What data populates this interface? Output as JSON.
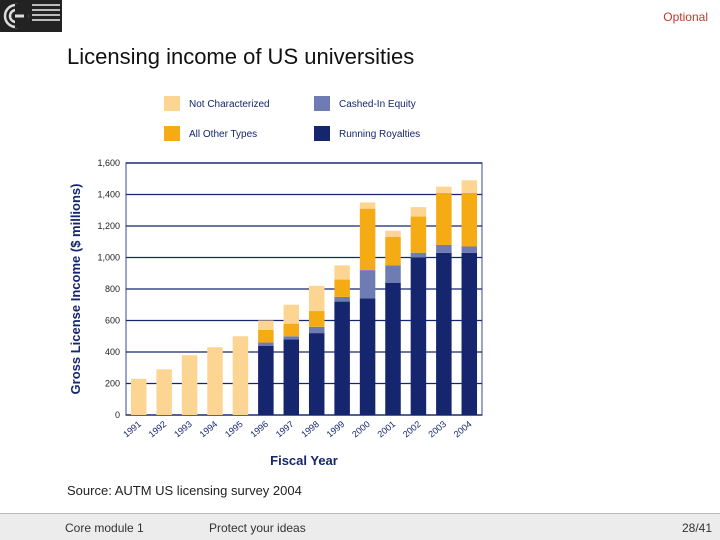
{
  "header": {
    "tag": "Optional"
  },
  "slide": {
    "title": "Licensing income of US universities",
    "source": "Source: AUTM US licensing survey 2004"
  },
  "footer": {
    "module": "Core module 1",
    "section": "Protect your ideas",
    "page": "28/41"
  },
  "chart_data": {
    "type": "bar",
    "stacked": true,
    "xlabel": "Fiscal Year",
    "ylabel": "Gross License Income ($ millions)",
    "ylim": [
      0,
      1600
    ],
    "yticks": [
      0,
      200,
      400,
      600,
      800,
      1000,
      1200,
      1400,
      1600
    ],
    "yticklabels": [
      "0",
      "200",
      "400",
      "600",
      "800",
      "1,000",
      "1,200",
      "1,400",
      "1,600"
    ],
    "grid": true,
    "legend_position": "top",
    "categories": [
      "1991",
      "1992",
      "1993",
      "1994",
      "1995",
      "1996",
      "1997",
      "1998",
      "1999",
      "2000",
      "2001",
      "2002",
      "2003",
      "2004"
    ],
    "series": [
      {
        "name": "Running Royalties",
        "color": "#15266e",
        "values": [
          0,
          0,
          0,
          0,
          0,
          440,
          480,
          520,
          720,
          740,
          840,
          1000,
          1030,
          1030
        ]
      },
      {
        "name": "Cashed-In Equity",
        "color": "#6f7bb3",
        "values": [
          0,
          0,
          0,
          0,
          0,
          20,
          20,
          40,
          30,
          180,
          110,
          30,
          50,
          40
        ]
      },
      {
        "name": "All Other Types",
        "color": "#f4ab14",
        "values": [
          0,
          0,
          0,
          0,
          0,
          80,
          80,
          100,
          110,
          390,
          180,
          230,
          330,
          340
        ]
      },
      {
        "name": "Not Characterized",
        "color": "#fdd593",
        "values": [
          230,
          290,
          380,
          430,
          500,
          60,
          120,
          160,
          90,
          40,
          40,
          60,
          40,
          80
        ]
      }
    ],
    "legend_order": [
      "Not Characterized",
      "Cashed-In Equity",
      "All Other Types",
      "Running Royalties"
    ]
  }
}
